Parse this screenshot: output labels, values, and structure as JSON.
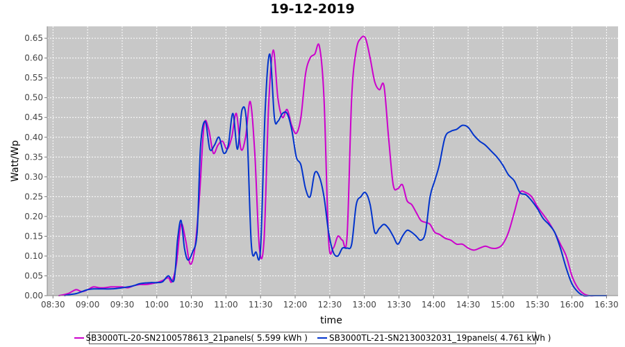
{
  "chart_data": {
    "type": "line",
    "title": "19-12-2019",
    "xlabel": "time",
    "ylabel": "Watt/Wp",
    "xlim": [
      "08:25",
      "16:40"
    ],
    "ylim": [
      0,
      0.68
    ],
    "grid": true,
    "legend_position": "bottom",
    "x_ticks": [
      "08:30",
      "09:00",
      "09:30",
      "10:00",
      "10:30",
      "11:00",
      "11:30",
      "12:00",
      "12:30",
      "13:00",
      "13:30",
      "14:00",
      "14:30",
      "15:00",
      "15:30",
      "16:00",
      "16:30"
    ],
    "y_ticks": [
      "0.00",
      "0.05",
      "0.10",
      "0.15",
      "0.20",
      "0.25",
      "0.30",
      "0.35",
      "0.40",
      "0.45",
      "0.50",
      "0.55",
      "0.60",
      "0.65"
    ],
    "series": [
      {
        "name": "SB3000TL-20-SN2100578613_21panels( 5.599 kWh )",
        "color": "#cc00cc",
        "x": [
          "08:35",
          "08:43",
          "08:50",
          "08:55",
          "09:00",
          "09:05",
          "09:10",
          "09:15",
          "09:20",
          "09:25",
          "09:30",
          "09:35",
          "09:40",
          "09:45",
          "09:50",
          "09:55",
          "10:00",
          "10:05",
          "10:10",
          "10:13",
          "10:17",
          "10:21",
          "10:25",
          "10:29",
          "10:33",
          "10:37",
          "10:41",
          "10:45",
          "10:49",
          "10:53",
          "10:57",
          "11:01",
          "11:05",
          "11:09",
          "11:13",
          "11:17",
          "11:21",
          "11:25",
          "11:29",
          "11:33",
          "11:37",
          "11:41",
          "11:45",
          "11:49",
          "11:53",
          "11:57",
          "12:01",
          "12:05",
          "12:09",
          "12:13",
          "12:17",
          "12:21",
          "12:25",
          "12:29",
          "12:33",
          "12:37",
          "12:41",
          "12:45",
          "12:49",
          "12:53",
          "12:57",
          "13:01",
          "13:05",
          "13:09",
          "13:13",
          "13:17",
          "13:21",
          "13:25",
          "13:29",
          "13:33",
          "13:37",
          "13:41",
          "13:45",
          "13:49",
          "13:53",
          "13:57",
          "14:01",
          "14:05",
          "14:10",
          "14:15",
          "14:20",
          "14:25",
          "14:30",
          "14:35",
          "14:40",
          "14:45",
          "14:50",
          "14:55",
          "15:00",
          "15:05",
          "15:10",
          "15:15",
          "15:20",
          "15:25",
          "15:30",
          "15:35",
          "15:40",
          "15:45",
          "15:50",
          "15:55",
          "16:00",
          "16:05",
          "16:10",
          "16:15",
          "16:20",
          "16:25",
          "16:30"
        ],
        "y": [
          0.0,
          0.005,
          0.015,
          0.01,
          0.015,
          0.022,
          0.02,
          0.02,
          0.022,
          0.022,
          0.022,
          0.02,
          0.025,
          0.028,
          0.028,
          0.03,
          0.033,
          0.038,
          0.045,
          0.035,
          0.08,
          0.18,
          0.14,
          0.08,
          0.12,
          0.25,
          0.43,
          0.42,
          0.36,
          0.38,
          0.39,
          0.37,
          0.4,
          0.46,
          0.37,
          0.4,
          0.49,
          0.36,
          0.12,
          0.14,
          0.48,
          0.62,
          0.5,
          0.45,
          0.47,
          0.43,
          0.41,
          0.45,
          0.56,
          0.6,
          0.61,
          0.63,
          0.5,
          0.14,
          0.12,
          0.15,
          0.14,
          0.15,
          0.5,
          0.62,
          0.65,
          0.65,
          0.6,
          0.54,
          0.52,
          0.53,
          0.4,
          0.28,
          0.27,
          0.28,
          0.24,
          0.23,
          0.21,
          0.19,
          0.185,
          0.18,
          0.16,
          0.155,
          0.145,
          0.14,
          0.13,
          0.13,
          0.12,
          0.115,
          0.12,
          0.125,
          0.12,
          0.12,
          0.13,
          0.16,
          0.21,
          0.26,
          0.26,
          0.25,
          0.225,
          0.205,
          0.185,
          0.16,
          0.13,
          0.1,
          0.05,
          0.02,
          0.005,
          0.0,
          0.0,
          0.0,
          0.0
        ]
      },
      {
        "name": "SB3000TL-21-SN2130032031_19panels( 4.761 kWh )",
        "color": "#0033cc",
        "x": [
          "08:40",
          "08:45",
          "08:50",
          "08:55",
          "09:00",
          "09:05",
          "09:10",
          "09:15",
          "09:20",
          "09:25",
          "09:30",
          "09:35",
          "09:40",
          "09:45",
          "09:50",
          "09:55",
          "10:00",
          "10:05",
          "10:10",
          "10:15",
          "10:18",
          "10:21",
          "10:24",
          "10:27",
          "10:31",
          "10:35",
          "10:38",
          "10:42",
          "10:46",
          "10:50",
          "10:54",
          "10:58",
          "11:02",
          "11:06",
          "11:10",
          "11:14",
          "11:18",
          "11:22",
          "11:26",
          "11:30",
          "11:34",
          "11:38",
          "11:42",
          "11:45",
          "11:49",
          "11:53",
          "11:57",
          "12:01",
          "12:05",
          "12:09",
          "12:13",
          "12:17",
          "12:21",
          "12:25",
          "12:29",
          "12:33",
          "12:37",
          "12:41",
          "12:45",
          "12:49",
          "12:53",
          "12:57",
          "13:01",
          "13:05",
          "13:09",
          "13:13",
          "13:17",
          "13:21",
          "13:25",
          "13:29",
          "13:33",
          "13:37",
          "13:41",
          "13:45",
          "13:49",
          "13:53",
          "13:57",
          "14:01",
          "14:05",
          "14:10",
          "14:15",
          "14:20",
          "14:25",
          "14:30",
          "14:35",
          "14:40",
          "14:45",
          "14:50",
          "14:55",
          "15:00",
          "15:05",
          "15:10",
          "15:15",
          "15:20",
          "15:25",
          "15:30",
          "15:35",
          "15:40",
          "15:45",
          "15:50",
          "15:55",
          "16:00",
          "16:05",
          "16:10",
          "16:15",
          "16:20",
          "16:25",
          "16:30"
        ],
        "y": [
          0.0,
          0.003,
          0.005,
          0.01,
          0.015,
          0.017,
          0.017,
          0.017,
          0.017,
          0.018,
          0.02,
          0.022,
          0.025,
          0.03,
          0.032,
          0.033,
          0.033,
          0.035,
          0.05,
          0.04,
          0.14,
          0.19,
          0.12,
          0.09,
          0.11,
          0.16,
          0.38,
          0.44,
          0.37,
          0.38,
          0.4,
          0.36,
          0.38,
          0.46,
          0.37,
          0.47,
          0.43,
          0.13,
          0.11,
          0.12,
          0.47,
          0.61,
          0.45,
          0.44,
          0.46,
          0.46,
          0.42,
          0.35,
          0.33,
          0.27,
          0.25,
          0.31,
          0.3,
          0.25,
          0.16,
          0.11,
          0.1,
          0.12,
          0.12,
          0.13,
          0.23,
          0.25,
          0.26,
          0.23,
          0.16,
          0.17,
          0.18,
          0.17,
          0.15,
          0.13,
          0.15,
          0.165,
          0.16,
          0.15,
          0.14,
          0.16,
          0.25,
          0.29,
          0.33,
          0.4,
          0.415,
          0.42,
          0.43,
          0.425,
          0.405,
          0.39,
          0.38,
          0.365,
          0.35,
          0.33,
          0.305,
          0.29,
          0.26,
          0.255,
          0.24,
          0.22,
          0.195,
          0.18,
          0.16,
          0.12,
          0.07,
          0.03,
          0.01,
          0.0,
          0.0,
          0.0,
          0.0,
          0.0
        ]
      }
    ]
  }
}
